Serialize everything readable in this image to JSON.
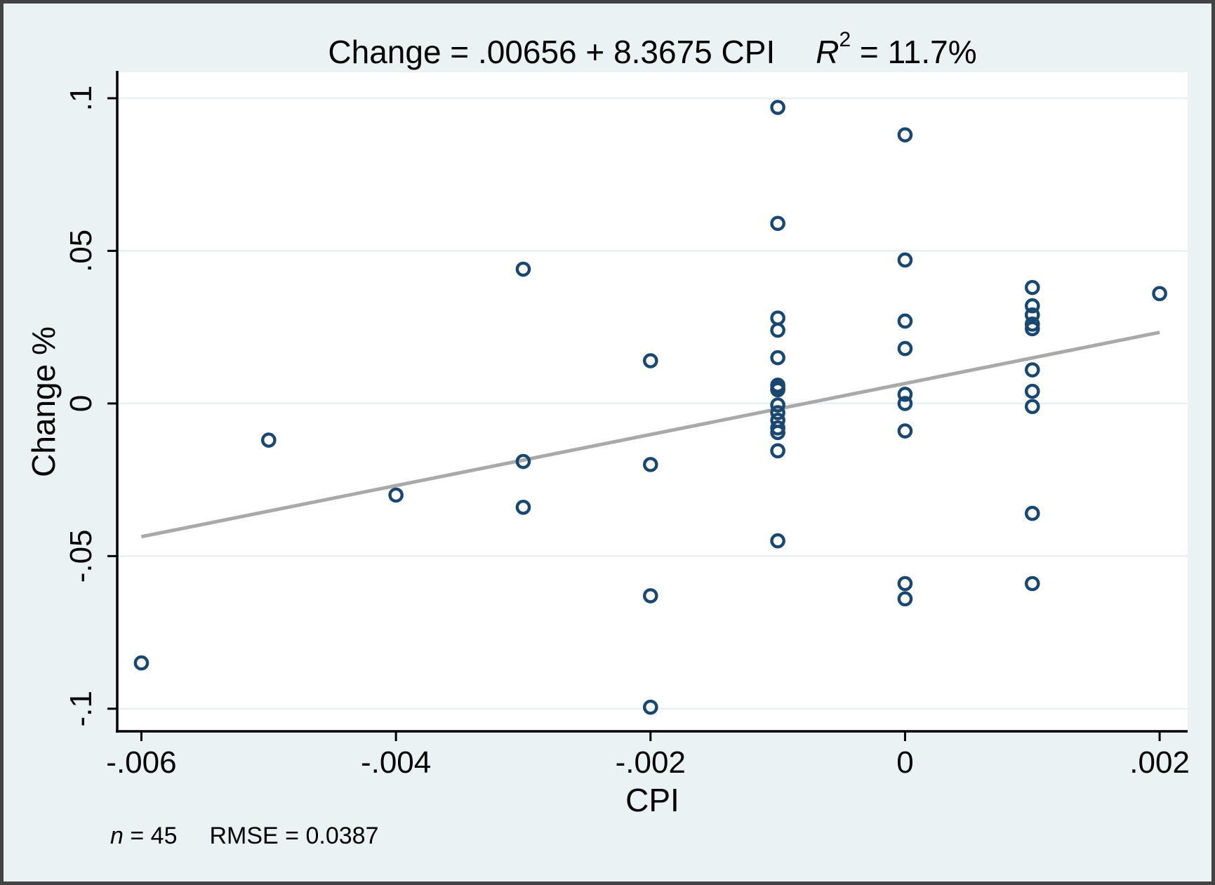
{
  "title": {
    "equation": "Change = .00656 + 8.3675 CPI",
    "r_symbol": "R",
    "r_exponent": "2",
    "r_rest": " = 11.7%"
  },
  "note": {
    "n_symbol": "n",
    "n_rest": " = 45",
    "rmse": "RMSE = 0.0387"
  },
  "chart_data": {
    "type": "scatter",
    "title": "Change = .00656 + 8.3675 CPI    R² = 11.7%",
    "xlabel": "CPI",
    "ylabel": "Change %",
    "xlim": [
      -0.00619,
      0.00222
    ],
    "ylim": [
      -0.1074,
      0.1085
    ],
    "grid": "horizontal",
    "legend": "none",
    "xticks": [
      {
        "v": -0.006,
        "label": "-.006"
      },
      {
        "v": -0.004,
        "label": "-.004"
      },
      {
        "v": -0.002,
        "label": "-.002"
      },
      {
        "v": 0,
        "label": "0"
      },
      {
        "v": 0.002,
        "label": ".002"
      }
    ],
    "yticks": [
      {
        "v": 0.1,
        "label": ".1"
      },
      {
        "v": 0.05,
        "label": ".05"
      },
      {
        "v": 0,
        "label": "0"
      },
      {
        "v": -0.05,
        "label": "-.05"
      },
      {
        "v": -0.1,
        "label": "-.1"
      }
    ],
    "points": [
      [
        -0.006,
        -0.085
      ],
      [
        -0.005,
        -0.012
      ],
      [
        -0.004,
        -0.03
      ],
      [
        -0.003,
        0.044
      ],
      [
        -0.003,
        -0.019
      ],
      [
        -0.003,
        -0.034
      ],
      [
        -0.002,
        0.014
      ],
      [
        -0.002,
        -0.02
      ],
      [
        -0.002,
        -0.063
      ],
      [
        -0.002,
        -0.0995
      ],
      [
        -0.001,
        0.097
      ],
      [
        -0.001,
        0.059
      ],
      [
        -0.001,
        0.028
      ],
      [
        -0.001,
        0.024
      ],
      [
        -0.001,
        0.015
      ],
      [
        -0.001,
        0.006
      ],
      [
        -0.001,
        0.005
      ],
      [
        -0.001,
        0.0045
      ],
      [
        -0.001,
        -0.0005
      ],
      [
        -0.001,
        -0.003
      ],
      [
        -0.001,
        -0.0055
      ],
      [
        -0.001,
        -0.008
      ],
      [
        -0.001,
        -0.0095
      ],
      [
        -0.001,
        -0.0155
      ],
      [
        -0.001,
        -0.045
      ],
      [
        0,
        0.088
      ],
      [
        0,
        0.047
      ],
      [
        0,
        0.027
      ],
      [
        0,
        0.018
      ],
      [
        0,
        0.003
      ],
      [
        0,
        0.0
      ],
      [
        0,
        -0.009
      ],
      [
        0,
        -0.059
      ],
      [
        0,
        -0.064
      ],
      [
        0.001,
        0.038
      ],
      [
        0.001,
        0.032
      ],
      [
        0.001,
        0.029
      ],
      [
        0.001,
        0.026
      ],
      [
        0.001,
        0.0245
      ],
      [
        0.001,
        0.011
      ],
      [
        0.001,
        0.004
      ],
      [
        0.001,
        -0.001
      ],
      [
        0.001,
        -0.036
      ],
      [
        0.001,
        -0.059
      ],
      [
        0.002,
        0.036
      ]
    ],
    "fit_line": {
      "equation": "Change = .00656 + 8.3675 CPI",
      "intercept": 0.00656,
      "slope": 8.3675,
      "x_start": -0.006,
      "x_end": 0.002
    },
    "stats": {
      "n": 45,
      "rmse": 0.0387,
      "r_squared_pct": 11.7
    },
    "colors": {
      "background": "#eaf2f3",
      "plot_background": "#ffffff",
      "marker": "#1a476f",
      "fit_line": "#a9a9a9",
      "grid": "#e7f1f1",
      "axis": "#000000",
      "frame_border": "#434343"
    }
  }
}
